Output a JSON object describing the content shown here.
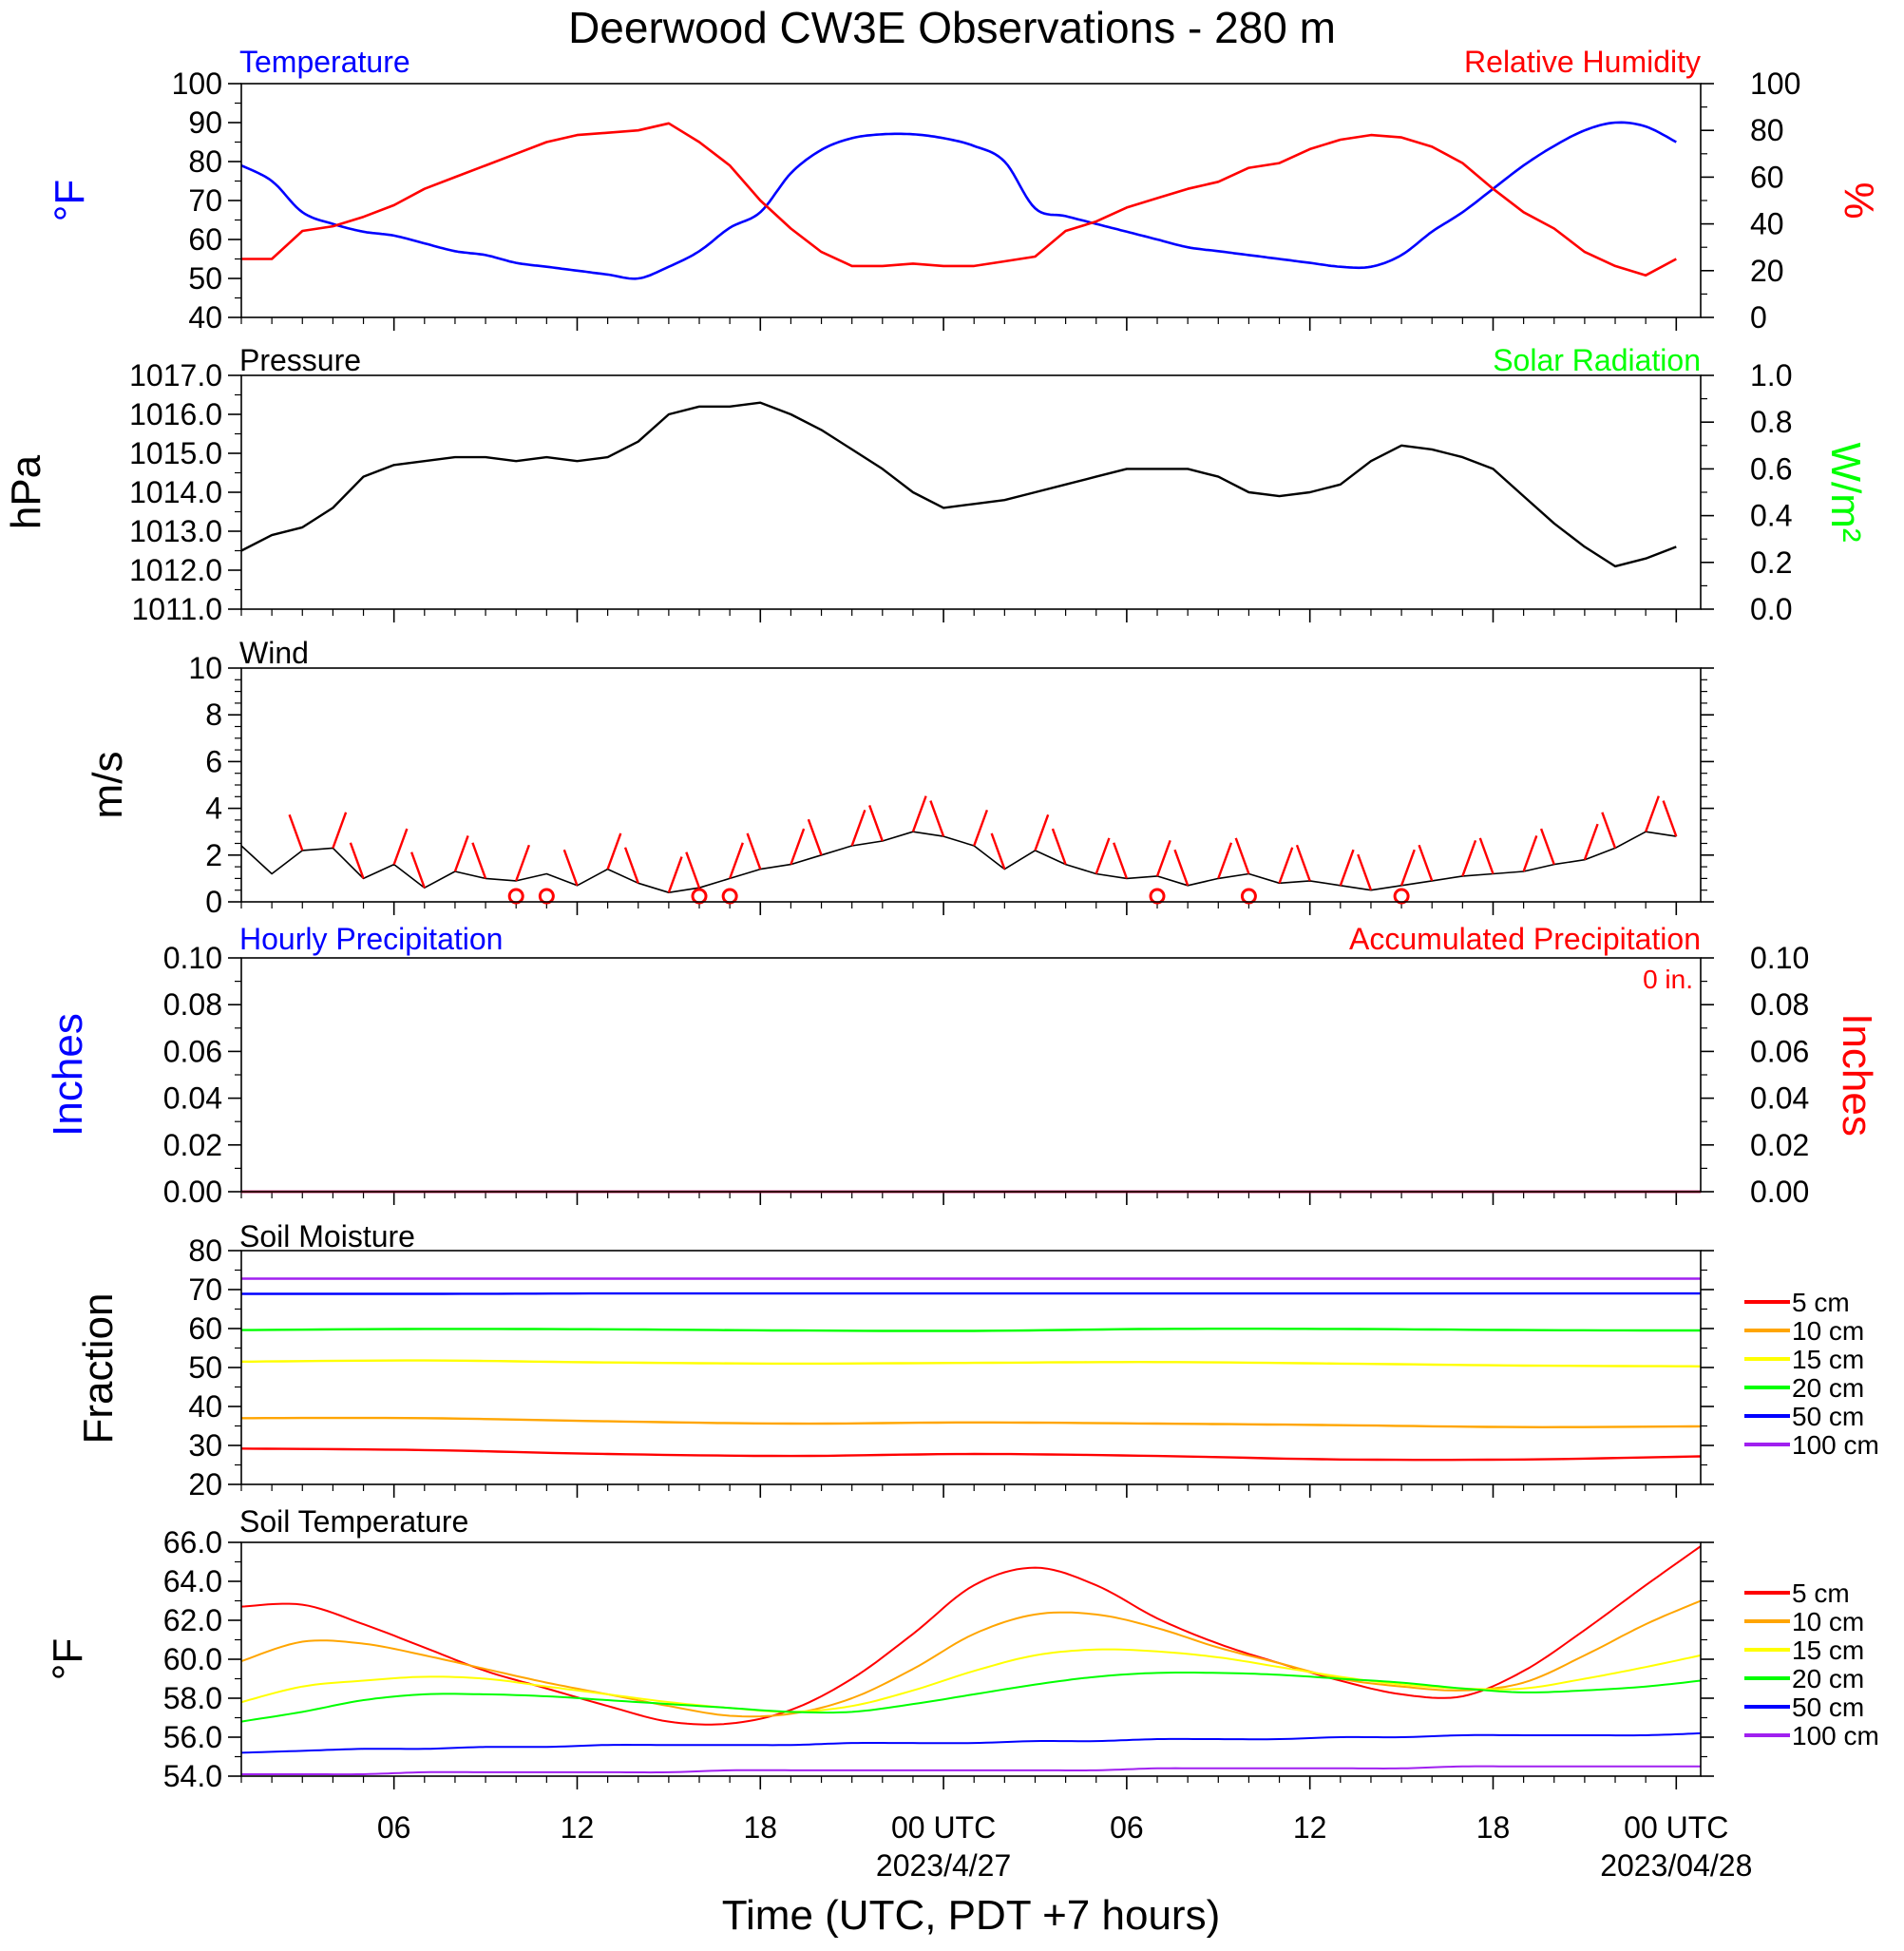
{
  "title": "Deerwood CW3E Observations - 280 m",
  "xlabel": "Time (UTC, PDT +7 hours)",
  "x_tick_labels": [
    "06",
    "12",
    "18",
    "00 UTC",
    "06",
    "12",
    "18",
    "00 UTC"
  ],
  "x_date_labels": [
    {
      "text": "2023/4/27",
      "under": "00 UTC #1"
    },
    {
      "text": "2023/04/28",
      "under": "00 UTC #2"
    }
  ],
  "colors": {
    "temperature": "#0000ff",
    "humidity": "#ff0000",
    "pressure": "#000000",
    "solar": "#00ff00",
    "wind": "#000000",
    "barb": "#ff0000",
    "hourly_precip": "#0000ff",
    "accum_precip": "#ff0000",
    "depth_5": "#ff0000",
    "depth_10": "#ffa500",
    "depth_15": "#ffff00",
    "depth_20": "#00ff00",
    "depth_50": "#0000ff",
    "depth_100": "#a020f0"
  },
  "panels": {
    "temp_rh": {
      "left_title": "Temperature",
      "right_title": "Relative Humidity",
      "left_unit": "°F",
      "right_unit": "%",
      "left_ticks": [
        "40",
        "50",
        "60",
        "70",
        "80",
        "90",
        "100"
      ],
      "right_ticks": [
        "0",
        "20",
        "40",
        "60",
        "80",
        "100"
      ]
    },
    "pressure": {
      "left_title": "Pressure",
      "right_title": "Solar Radiation",
      "left_unit": "hPa",
      "right_unit": "W/m²",
      "left_ticks": [
        "1011.0",
        "1012.0",
        "1013.0",
        "1014.0",
        "1015.0",
        "1016.0",
        "1017.0"
      ],
      "right_ticks": [
        "0.0",
        "0.2",
        "0.4",
        "0.6",
        "0.8",
        "1.0"
      ]
    },
    "wind": {
      "left_title": "Wind",
      "left_unit": "m/s",
      "left_ticks": [
        "0",
        "2",
        "4",
        "6",
        "8",
        "10"
      ]
    },
    "precip": {
      "left_title": "Hourly Precipitation",
      "right_title": "Accumulated Precipitation",
      "left_unit": "Inches",
      "right_unit": "Inches",
      "total_label": "0 in.",
      "left_ticks": [
        "0.00",
        "0.02",
        "0.04",
        "0.06",
        "0.08",
        "0.10"
      ],
      "right_ticks": [
        "0.00",
        "0.02",
        "0.04",
        "0.06",
        "0.08",
        "0.10"
      ]
    },
    "soil_moisture": {
      "left_title": "Soil Moisture",
      "left_unit": "Fraction",
      "left_ticks": [
        "20",
        "30",
        "40",
        "50",
        "60",
        "70",
        "80"
      ],
      "legend": [
        "5 cm",
        "10 cm",
        "15 cm",
        "20 cm",
        "50 cm",
        "100 cm"
      ]
    },
    "soil_temp": {
      "left_title": "Soil Temperature",
      "left_unit": "°F",
      "left_ticks": [
        "54.0",
        "56.0",
        "58.0",
        "60.0",
        "62.0",
        "64.0",
        "66.0"
      ],
      "legend": [
        "5 cm",
        "10 cm",
        "15 cm",
        "20 cm",
        "50 cm",
        "100 cm"
      ]
    }
  },
  "chart_data": [
    {
      "type": "line",
      "title": "Temperature / Relative Humidity",
      "x": [
        1,
        2,
        3,
        4,
        5,
        6,
        7,
        8,
        9,
        10,
        11,
        12,
        13,
        14,
        15,
        16,
        17,
        18,
        19,
        20,
        21,
        22,
        23,
        24,
        25,
        26,
        27,
        28,
        29,
        30,
        31,
        32,
        33,
        34,
        35,
        36,
        37,
        38,
        39,
        40,
        41,
        42,
        43,
        44,
        45,
        46,
        47,
        48
      ],
      "xlim": [
        1,
        48.8
      ],
      "ylim": [
        40,
        100
      ],
      "y2lim": [
        0,
        100
      ],
      "series": [
        {
          "name": "Temperature",
          "axis": "left",
          "values": [
            79,
            75,
            67,
            64,
            62,
            61,
            59,
            57,
            56,
            54,
            53,
            52,
            51,
            50,
            53,
            57,
            63,
            67,
            77,
            83,
            86,
            87,
            87,
            86,
            84,
            80,
            68,
            66,
            64,
            62,
            60,
            58,
            57,
            56,
            55,
            54,
            53,
            53,
            56,
            62,
            67,
            73,
            79,
            84,
            88,
            90,
            89,
            85
          ]
        },
        {
          "name": "Relative Humidity",
          "axis": "right",
          "values": [
            25,
            25,
            37,
            39,
            43,
            48,
            55,
            60,
            65,
            70,
            75,
            78,
            79,
            80,
            83,
            75,
            65,
            50,
            38,
            28,
            22,
            22,
            23,
            22,
            22,
            24,
            26,
            37,
            41,
            47,
            51,
            55,
            58,
            64,
            66,
            72,
            76,
            78,
            77,
            73,
            66,
            55,
            45,
            38,
            28,
            22,
            18,
            25
          ]
        }
      ]
    },
    {
      "type": "line",
      "title": "Pressure",
      "x": [
        1,
        2,
        3,
        4,
        5,
        6,
        7,
        8,
        9,
        10,
        11,
        12,
        13,
        14,
        15,
        16,
        17,
        18,
        19,
        20,
        21,
        22,
        23,
        24,
        25,
        26,
        27,
        28,
        29,
        30,
        31,
        32,
        33,
        34,
        35,
        36,
        37,
        38,
        39,
        40,
        41,
        42,
        43,
        44,
        45,
        46,
        47,
        48
      ],
      "xlim": [
        1,
        48.8
      ],
      "ylim": [
        1011.0,
        1017.0
      ],
      "y2lim": [
        0.0,
        1.0
      ],
      "series": [
        {
          "name": "Pressure",
          "values": [
            1012.5,
            1012.9,
            1013.1,
            1013.6,
            1014.4,
            1014.7,
            1014.8,
            1014.9,
            1014.9,
            1014.8,
            1014.9,
            1014.8,
            1014.9,
            1015.3,
            1016.0,
            1016.2,
            1016.2,
            1016.3,
            1016.0,
            1015.6,
            1015.1,
            1014.6,
            1014.0,
            1013.6,
            1013.7,
            1013.8,
            1014.0,
            1014.2,
            1014.4,
            1014.6,
            1014.6,
            1014.6,
            1014.4,
            1014.0,
            1013.9,
            1014.0,
            1014.2,
            1014.8,
            1015.2,
            1015.1,
            1014.9,
            1014.6,
            1013.9,
            1013.2,
            1012.6,
            1012.1,
            1012.3,
            1012.6
          ]
        }
      ]
    },
    {
      "type": "line",
      "title": "Wind",
      "x": [
        1,
        2,
        3,
        4,
        5,
        6,
        7,
        8,
        9,
        10,
        11,
        12,
        13,
        14,
        15,
        16,
        17,
        18,
        19,
        20,
        21,
        22,
        23,
        24,
        25,
        26,
        27,
        28,
        29,
        30,
        31,
        32,
        33,
        34,
        35,
        36,
        37,
        38,
        39,
        40,
        41,
        42,
        43,
        44,
        45,
        46,
        47,
        48
      ],
      "xlim": [
        1,
        48.8
      ],
      "ylim": [
        0,
        10
      ],
      "series": [
        {
          "name": "Wind speed",
          "values": [
            2.4,
            1.2,
            2.2,
            2.3,
            1.0,
            1.6,
            0.6,
            1.3,
            1.0,
            0.9,
            1.2,
            0.7,
            1.4,
            0.8,
            0.4,
            0.6,
            1.0,
            1.4,
            1.6,
            2.0,
            2.4,
            2.6,
            3.0,
            2.8,
            2.4,
            1.4,
            2.2,
            1.6,
            1.2,
            1.0,
            1.1,
            0.7,
            1.0,
            1.2,
            0.8,
            0.9,
            0.7,
            0.5,
            0.7,
            0.9,
            1.1,
            1.2,
            1.3,
            1.6,
            1.8,
            2.3,
            3.0,
            2.8
          ]
        }
      ],
      "barbs_hours": [
        3,
        4,
        5,
        6,
        7,
        8,
        9,
        10,
        12,
        13,
        14,
        15,
        16,
        17,
        18,
        19,
        20,
        21,
        22,
        23,
        24,
        25,
        26,
        27,
        28,
        29,
        30,
        31,
        32,
        33,
        34,
        35,
        36,
        37,
        38,
        39,
        40,
        41,
        42,
        43,
        44,
        45,
        46,
        47,
        48
      ],
      "calm_hours": [
        10,
        11,
        16,
        17,
        31,
        34,
        39
      ]
    },
    {
      "type": "line",
      "title": "Hourly Precipitation / Accumulated Precipitation",
      "x": [
        1,
        48.8
      ],
      "xlim": [
        1,
        48.8
      ],
      "ylim": [
        0.0,
        0.1
      ],
      "y2lim": [
        0.0,
        0.1
      ],
      "series": [
        {
          "name": "Hourly Precipitation",
          "axis": "left",
          "values": [
            0.0,
            0.0
          ]
        },
        {
          "name": "Accumulated Precipitation",
          "axis": "right",
          "values": [
            0.0,
            0.0
          ]
        }
      ]
    },
    {
      "type": "line",
      "title": "Soil Moisture",
      "x": [
        1,
        7,
        13,
        19,
        25,
        31,
        37,
        43,
        48.8
      ],
      "xlim": [
        1,
        48.8
      ],
      "ylim": [
        20,
        80
      ],
      "series": [
        {
          "name": "5 cm",
          "values": [
            29.2,
            28.8,
            27.8,
            27.3,
            27.8,
            27.3,
            26.4,
            26.4,
            27.2
          ]
        },
        {
          "name": "10 cm",
          "values": [
            37.0,
            37.0,
            36.2,
            35.6,
            35.9,
            35.6,
            35.2,
            34.7,
            34.9
          ]
        },
        {
          "name": "15 cm",
          "values": [
            51.5,
            51.8,
            51.3,
            51.0,
            51.2,
            51.4,
            51.0,
            50.5,
            50.3
          ]
        },
        {
          "name": "20 cm",
          "values": [
            59.6,
            59.9,
            59.8,
            59.5,
            59.4,
            59.9,
            59.9,
            59.6,
            59.5
          ]
        },
        {
          "name": "50 cm",
          "values": [
            68.9,
            68.9,
            69.0,
            69.0,
            69.0,
            69.0,
            69.0,
            69.0,
            69.0
          ]
        },
        {
          "name": "100 cm",
          "values": [
            72.8,
            72.8,
            72.8,
            72.8,
            72.8,
            72.8,
            72.8,
            72.8,
            72.8
          ]
        }
      ]
    },
    {
      "type": "line",
      "title": "Soil Temperature",
      "x": [
        1,
        3,
        5,
        7,
        9,
        11,
        13,
        15,
        17,
        19,
        21,
        23,
        25,
        27,
        29,
        31,
        33,
        35,
        37,
        39,
        41,
        43,
        45,
        47,
        48.8
      ],
      "xlim": [
        1,
        48.8
      ],
      "ylim": [
        54.0,
        66.0
      ],
      "series": [
        {
          "name": "5 cm",
          "values": [
            62.7,
            62.8,
            61.8,
            60.6,
            59.4,
            58.5,
            57.6,
            56.8,
            56.7,
            57.4,
            59.0,
            61.3,
            63.8,
            64.7,
            63.8,
            62.1,
            60.8,
            59.8,
            58.9,
            58.2,
            58.1,
            59.4,
            61.5,
            63.8,
            65.8
          ]
        },
        {
          "name": "10 cm",
          "values": [
            59.9,
            60.9,
            60.8,
            60.2,
            59.5,
            58.8,
            58.2,
            57.6,
            57.1,
            57.2,
            58.0,
            59.5,
            61.3,
            62.3,
            62.3,
            61.6,
            60.6,
            59.8,
            59.0,
            58.6,
            58.4,
            58.8,
            60.2,
            61.8,
            63.0
          ]
        },
        {
          "name": "15 cm",
          "values": [
            57.8,
            58.6,
            58.9,
            59.1,
            59.0,
            58.6,
            58.2,
            57.8,
            57.5,
            57.3,
            57.6,
            58.4,
            59.4,
            60.2,
            60.5,
            60.4,
            60.1,
            59.6,
            59.1,
            58.7,
            58.5,
            58.5,
            59.0,
            59.6,
            60.2
          ]
        },
        {
          "name": "20 cm",
          "values": [
            56.8,
            57.3,
            57.9,
            58.2,
            58.2,
            58.1,
            57.9,
            57.7,
            57.5,
            57.3,
            57.3,
            57.7,
            58.2,
            58.7,
            59.1,
            59.3,
            59.3,
            59.2,
            59.0,
            58.8,
            58.5,
            58.3,
            58.4,
            58.6,
            58.9
          ]
        },
        {
          "name": "50 cm",
          "values": [
            55.2,
            55.3,
            55.4,
            55.4,
            55.5,
            55.5,
            55.6,
            55.6,
            55.6,
            55.6,
            55.7,
            55.7,
            55.7,
            55.8,
            55.8,
            55.9,
            55.9,
            55.9,
            56.0,
            56.0,
            56.1,
            56.1,
            56.1,
            56.1,
            56.2
          ]
        },
        {
          "name": "100 cm",
          "values": [
            54.1,
            54.1,
            54.1,
            54.2,
            54.2,
            54.2,
            54.2,
            54.2,
            54.3,
            54.3,
            54.3,
            54.3,
            54.3,
            54.3,
            54.3,
            54.4,
            54.4,
            54.4,
            54.4,
            54.4,
            54.5,
            54.5,
            54.5,
            54.5,
            54.5
          ]
        }
      ]
    }
  ]
}
